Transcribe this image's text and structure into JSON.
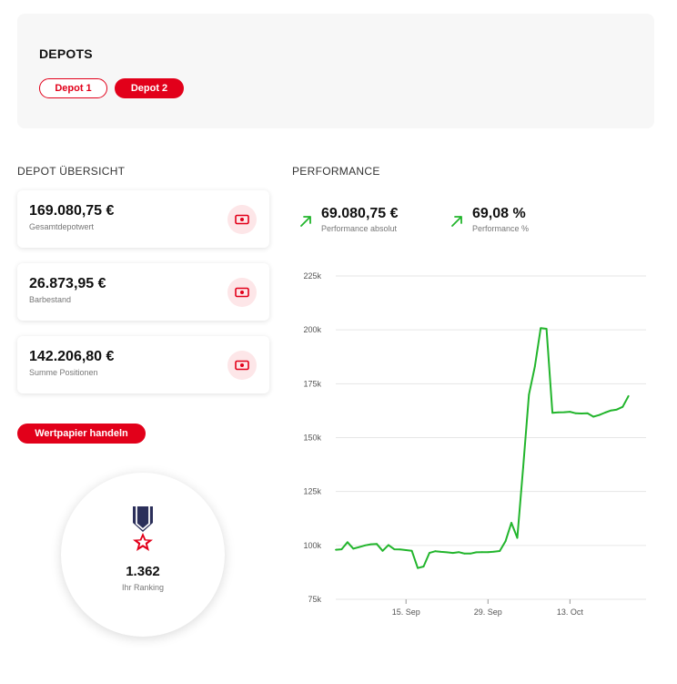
{
  "depots": {
    "title": "DEPOTS",
    "tabs": [
      {
        "label": "Depot 1",
        "active": false
      },
      {
        "label": "Depot 2",
        "active": true
      }
    ]
  },
  "overview": {
    "title": "DEPOT ÜBERSICHT",
    "cards": [
      {
        "value": "169.080,75 €",
        "label": "Gesamtdepotwert",
        "icon": "cash-icon"
      },
      {
        "value": "26.873,95 €",
        "label": "Barbestand",
        "icon": "cash-icon"
      },
      {
        "value": "142.206,80 €",
        "label": "Summe Positionen",
        "icon": "cash-icon"
      }
    ],
    "trade_button": "Wertpapier handeln",
    "ranking": {
      "value": "1.362",
      "label": "Ihr Ranking",
      "icon": "medal-icon"
    }
  },
  "performance": {
    "title": "PERFORMANCE",
    "absolute": {
      "value": "69.080,75 €",
      "label": "Performance absolut",
      "icon": "trend-up-icon"
    },
    "percent": {
      "value": "69,08 %",
      "label": "Performance %",
      "icon": "trend-up-icon"
    }
  },
  "colors": {
    "accent": "#e2001a",
    "line": "#22b52c"
  },
  "chart_data": {
    "type": "line",
    "y_ticks": [
      "225k",
      "200k",
      "175k",
      "150k",
      "125k",
      "100k",
      "75k"
    ],
    "ylim": [
      75000,
      225000
    ],
    "x_ticks": [
      {
        "label": "15. Sep",
        "day": 15
      },
      {
        "label": "29. Sep",
        "day": 29
      },
      {
        "label": "13. Oct",
        "day": 43
      }
    ],
    "x_range": [
      3,
      56
    ],
    "grid": true,
    "series": [
      {
        "color": "#22b52c",
        "points": [
          [
            3,
            98000
          ],
          [
            4,
            98200
          ],
          [
            5,
            101500
          ],
          [
            6,
            98500
          ],
          [
            7,
            99200
          ],
          [
            8,
            100000
          ],
          [
            9,
            100500
          ],
          [
            10,
            100700
          ],
          [
            11,
            97500
          ],
          [
            12,
            100200
          ],
          [
            13,
            98200
          ],
          [
            14,
            98100
          ],
          [
            15,
            97800
          ],
          [
            16,
            97500
          ],
          [
            17,
            89500
          ],
          [
            18,
            90200
          ],
          [
            19,
            96500
          ],
          [
            20,
            97300
          ],
          [
            21,
            97000
          ],
          [
            22,
            96800
          ],
          [
            23,
            96500
          ],
          [
            24,
            96900
          ],
          [
            25,
            96200
          ],
          [
            26,
            96200
          ],
          [
            27,
            96800
          ],
          [
            28,
            96900
          ],
          [
            29,
            96900
          ],
          [
            30,
            97100
          ],
          [
            31,
            97400
          ],
          [
            32,
            102000
          ],
          [
            33,
            110500
          ],
          [
            34,
            103500
          ],
          [
            35,
            136000
          ],
          [
            36,
            170000
          ],
          [
            37,
            183000
          ],
          [
            38,
            200800
          ],
          [
            39,
            200500
          ],
          [
            40,
            161500
          ],
          [
            41,
            161700
          ],
          [
            42,
            161800
          ],
          [
            43,
            162000
          ],
          [
            44,
            161300
          ],
          [
            45,
            161200
          ],
          [
            46,
            161300
          ],
          [
            47,
            159700
          ],
          [
            48,
            160500
          ],
          [
            49,
            161600
          ],
          [
            50,
            162600
          ],
          [
            51,
            163000
          ],
          [
            52,
            164300
          ],
          [
            53,
            169300
          ]
        ]
      }
    ]
  }
}
